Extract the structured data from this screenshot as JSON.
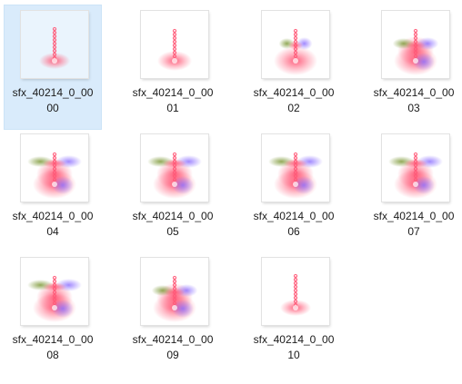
{
  "files": [
    {
      "name_line1": "sfx_40214_0_00",
      "name_line2": "00",
      "selected": true,
      "stage": 0
    },
    {
      "name_line1": "sfx_40214_0_00",
      "name_line2": "01",
      "selected": false,
      "stage": 1
    },
    {
      "name_line1": "sfx_40214_0_00",
      "name_line2": "02",
      "selected": false,
      "stage": 2
    },
    {
      "name_line1": "sfx_40214_0_00",
      "name_line2": "03",
      "selected": false,
      "stage": 3
    },
    {
      "name_line1": "sfx_40214_0_00",
      "name_line2": "04",
      "selected": false,
      "stage": 4
    },
    {
      "name_line1": "sfx_40214_0_00",
      "name_line2": "05",
      "selected": false,
      "stage": 4
    },
    {
      "name_line1": "sfx_40214_0_00",
      "name_line2": "06",
      "selected": false,
      "stage": 4
    },
    {
      "name_line1": "sfx_40214_0_00",
      "name_line2": "07",
      "selected": false,
      "stage": 4
    },
    {
      "name_line1": "sfx_40214_0_00",
      "name_line2": "08",
      "selected": false,
      "stage": 4
    },
    {
      "name_line1": "sfx_40214_0_00",
      "name_line2": "09",
      "selected": false,
      "stage": 3
    },
    {
      "name_line1": "sfx_40214_0_00",
      "name_line2": "10",
      "selected": false,
      "stage": 0
    }
  ],
  "colors": {
    "selection_bg": "#d9ebfb",
    "effect_pink": "#ff5a78",
    "effect_purple": "#8a6cff",
    "effect_green": "#7f9a3a"
  },
  "icon": "image-thumbnail"
}
